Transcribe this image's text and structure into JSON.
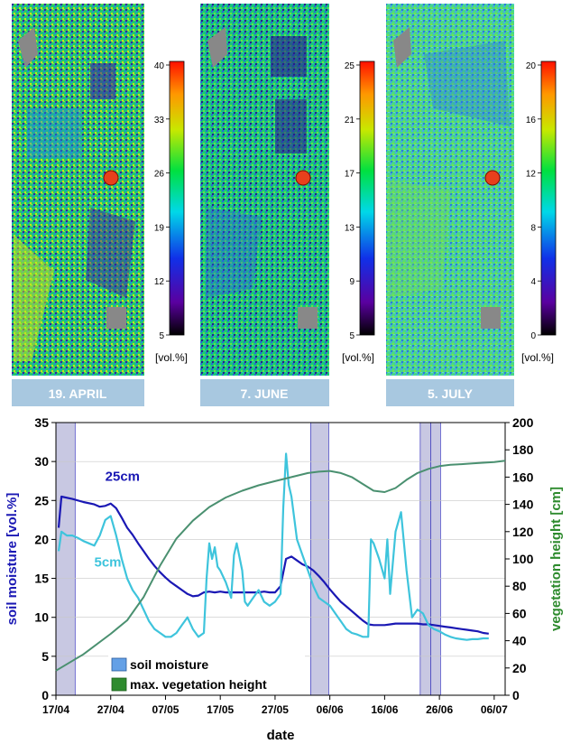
{
  "maps": [
    {
      "date_label": "19. APRIL",
      "unit_label": "[vol.%]",
      "colorbar_ticks": [
        "40",
        "33",
        "26",
        "19",
        "12",
        "5"
      ],
      "dominant_colors": [
        "#00e05a",
        "#1f8fd6",
        "#3a1f9c",
        "#c8e01e"
      ],
      "marker_color": "#e8401c"
    },
    {
      "date_label": "7. JUNE",
      "unit_label": "[vol.%]",
      "colorbar_ticks": [
        "25",
        "21",
        "17",
        "13",
        "9",
        "5"
      ],
      "dominant_colors": [
        "#14d26e",
        "#2a66d8",
        "#2a1c8c",
        "#68e04a"
      ],
      "marker_color": "#e8401c"
    },
    {
      "date_label": "5. JULY",
      "unit_label": "[vol.%]",
      "colorbar_ticks": [
        "20",
        "16",
        "12",
        "8",
        "4",
        "0"
      ],
      "dominant_colors": [
        "#40dc78",
        "#48a8e8",
        "#2a78e0",
        "#78e050"
      ],
      "marker_color": "#e8401c"
    }
  ],
  "chart_data": {
    "type": "line",
    "xlabel": "date",
    "ylabel_left": "soil moisture [vol.%]",
    "ylabel_right": "vegetation height [cm]",
    "x_tick_labels": [
      "17/04",
      "27/04",
      "07/05",
      "17/05",
      "27/05",
      "06/06",
      "16/06",
      "26/06",
      "06/07"
    ],
    "x_tick_values": [
      0,
      10,
      20,
      30,
      40,
      50,
      60,
      70,
      80
    ],
    "xlim": [
      0,
      82
    ],
    "ylim_left": [
      0,
      35
    ],
    "yticks_left": [
      "0",
      "5",
      "10",
      "15",
      "20",
      "25",
      "30",
      "35"
    ],
    "ylim_right": [
      0,
      200
    ],
    "yticks_right": [
      "0",
      "20",
      "40",
      "60",
      "80",
      "100",
      "120",
      "140",
      "160",
      "180",
      "200"
    ],
    "shaded_periods": [
      [
        0,
        3.5
      ],
      [
        46.5,
        49.8
      ],
      [
        66.5,
        68.4
      ],
      [
        68.4,
        70.2
      ]
    ],
    "shade_color": "#c8c8e2",
    "series": [
      {
        "name": "25cm",
        "axis": "left",
        "color": "#1a18b4",
        "x": [
          0.5,
          1,
          3,
          5,
          7,
          8,
          9,
          10,
          11,
          12,
          13,
          14,
          15,
          16,
          17,
          18,
          19,
          20,
          21,
          22,
          23,
          24,
          25,
          26,
          27,
          28,
          29,
          30,
          31,
          32,
          33,
          34,
          35,
          36,
          37,
          38,
          39,
          40,
          41,
          42,
          43,
          44,
          45,
          46,
          47,
          48,
          49,
          50,
          51,
          52,
          53,
          54,
          55,
          56,
          57,
          58,
          59,
          60,
          61,
          62,
          63,
          64,
          65,
          66,
          67,
          68,
          69,
          70,
          71,
          72,
          73,
          74,
          75,
          76,
          77,
          78,
          79
        ],
        "y": [
          21.5,
          25.5,
          25.2,
          24.8,
          24.5,
          24.2,
          24.3,
          24.6,
          24.0,
          22.8,
          21.5,
          20.6,
          19.5,
          18.5,
          17.5,
          16.6,
          15.8,
          15.1,
          14.5,
          14.0,
          13.5,
          13.0,
          12.7,
          12.8,
          13.2,
          13.3,
          13.2,
          13.3,
          13.2,
          13.2,
          13.2,
          13.2,
          13.2,
          13.2,
          13.2,
          13.3,
          13.2,
          13.2,
          14.0,
          17.5,
          17.8,
          17.3,
          16.8,
          16.5,
          16.0,
          15.3,
          14.5,
          13.6,
          12.8,
          12.0,
          11.4,
          10.8,
          10.2,
          9.6,
          9.1,
          9.0,
          9.0,
          9.0,
          9.1,
          9.2,
          9.2,
          9.2,
          9.2,
          9.2,
          9.1,
          9.1,
          9.0,
          8.9,
          8.8,
          8.7,
          8.6,
          8.5,
          8.4,
          8.3,
          8.2,
          8.0,
          7.9
        ]
      },
      {
        "name": "5cm",
        "axis": "left",
        "color": "#3ec4dc",
        "x": [
          0.5,
          1,
          2,
          3,
          4,
          5,
          6,
          7,
          8,
          9,
          10,
          11,
          12,
          13,
          14,
          15,
          16,
          17,
          18,
          19,
          20,
          21,
          22,
          23,
          24,
          25,
          26,
          27,
          27.5,
          28,
          28.5,
          29,
          29.5,
          30,
          31,
          32,
          32.5,
          33,
          34,
          34.5,
          35,
          36,
          37,
          38,
          39,
          40,
          41,
          41.5,
          42,
          42.5,
          43,
          44,
          45,
          46,
          47,
          48,
          49,
          50,
          51,
          52,
          53,
          54,
          55,
          56,
          57,
          57.5,
          58,
          59,
          60,
          60.5,
          61,
          62,
          63,
          64,
          65,
          66,
          67,
          68,
          69,
          70,
          71,
          72,
          73,
          74,
          75,
          76,
          77,
          78,
          79
        ],
        "y": [
          18.5,
          21.0,
          20.5,
          20.5,
          20.2,
          19.8,
          19.5,
          19.2,
          20.5,
          22.5,
          23.0,
          20.5,
          17.5,
          15.0,
          13.5,
          12.5,
          11.0,
          9.5,
          8.5,
          8.0,
          7.5,
          7.5,
          8.0,
          9.0,
          10.0,
          8.5,
          7.5,
          8.0,
          15.0,
          19.5,
          17.5,
          19.0,
          16.5,
          16.0,
          14.5,
          12.5,
          18.0,
          19.5,
          16.0,
          12.0,
          11.5,
          12.5,
          13.5,
          12.0,
          11.5,
          12.0,
          13.0,
          24.0,
          31.0,
          27.0,
          25.5,
          20.0,
          18.0,
          16.0,
          14.0,
          12.5,
          12.0,
          11.5,
          10.5,
          9.5,
          8.5,
          8.0,
          7.8,
          7.5,
          7.5,
          20.0,
          19.5,
          17.5,
          15.0,
          20.0,
          13.0,
          21.0,
          23.5,
          16.0,
          10.0,
          11.0,
          10.5,
          9.0,
          8.5,
          8.2,
          7.8,
          7.5,
          7.3,
          7.2,
          7.1,
          7.2,
          7.2,
          7.3,
          7.3
        ]
      },
      {
        "name": "max. vegetation height",
        "axis": "right",
        "color": "#4a9070",
        "x": [
          0,
          5,
          10,
          13,
          16,
          19,
          22,
          25,
          28,
          31,
          34,
          37,
          40,
          43,
          46,
          48,
          50,
          52,
          54,
          56,
          58,
          60,
          62,
          64,
          66,
          68,
          70,
          72,
          74,
          76,
          78,
          80,
          82
        ],
        "y": [
          18,
          30,
          45,
          55,
          72,
          95,
          115,
          128,
          138,
          145,
          150,
          154,
          157,
          160,
          163,
          164,
          164.5,
          163,
          160,
          155,
          150,
          149,
          152,
          158,
          163,
          166,
          168,
          169,
          169.5,
          170,
          170.5,
          171,
          172
        ]
      }
    ],
    "annotations": [
      {
        "text": "25cm",
        "x": 9,
        "y": 27.5,
        "color": "#1a18b4"
      },
      {
        "text": "5cm",
        "x": 7,
        "y": 16.5,
        "color": "#3ec4dc"
      }
    ],
    "legend": {
      "placement": "bottom-left",
      "entries": [
        {
          "label": "soil moisture",
          "color": "#64a0e6"
        },
        {
          "label": "max. vegetation height",
          "color": "#2e8b2e"
        }
      ]
    }
  }
}
